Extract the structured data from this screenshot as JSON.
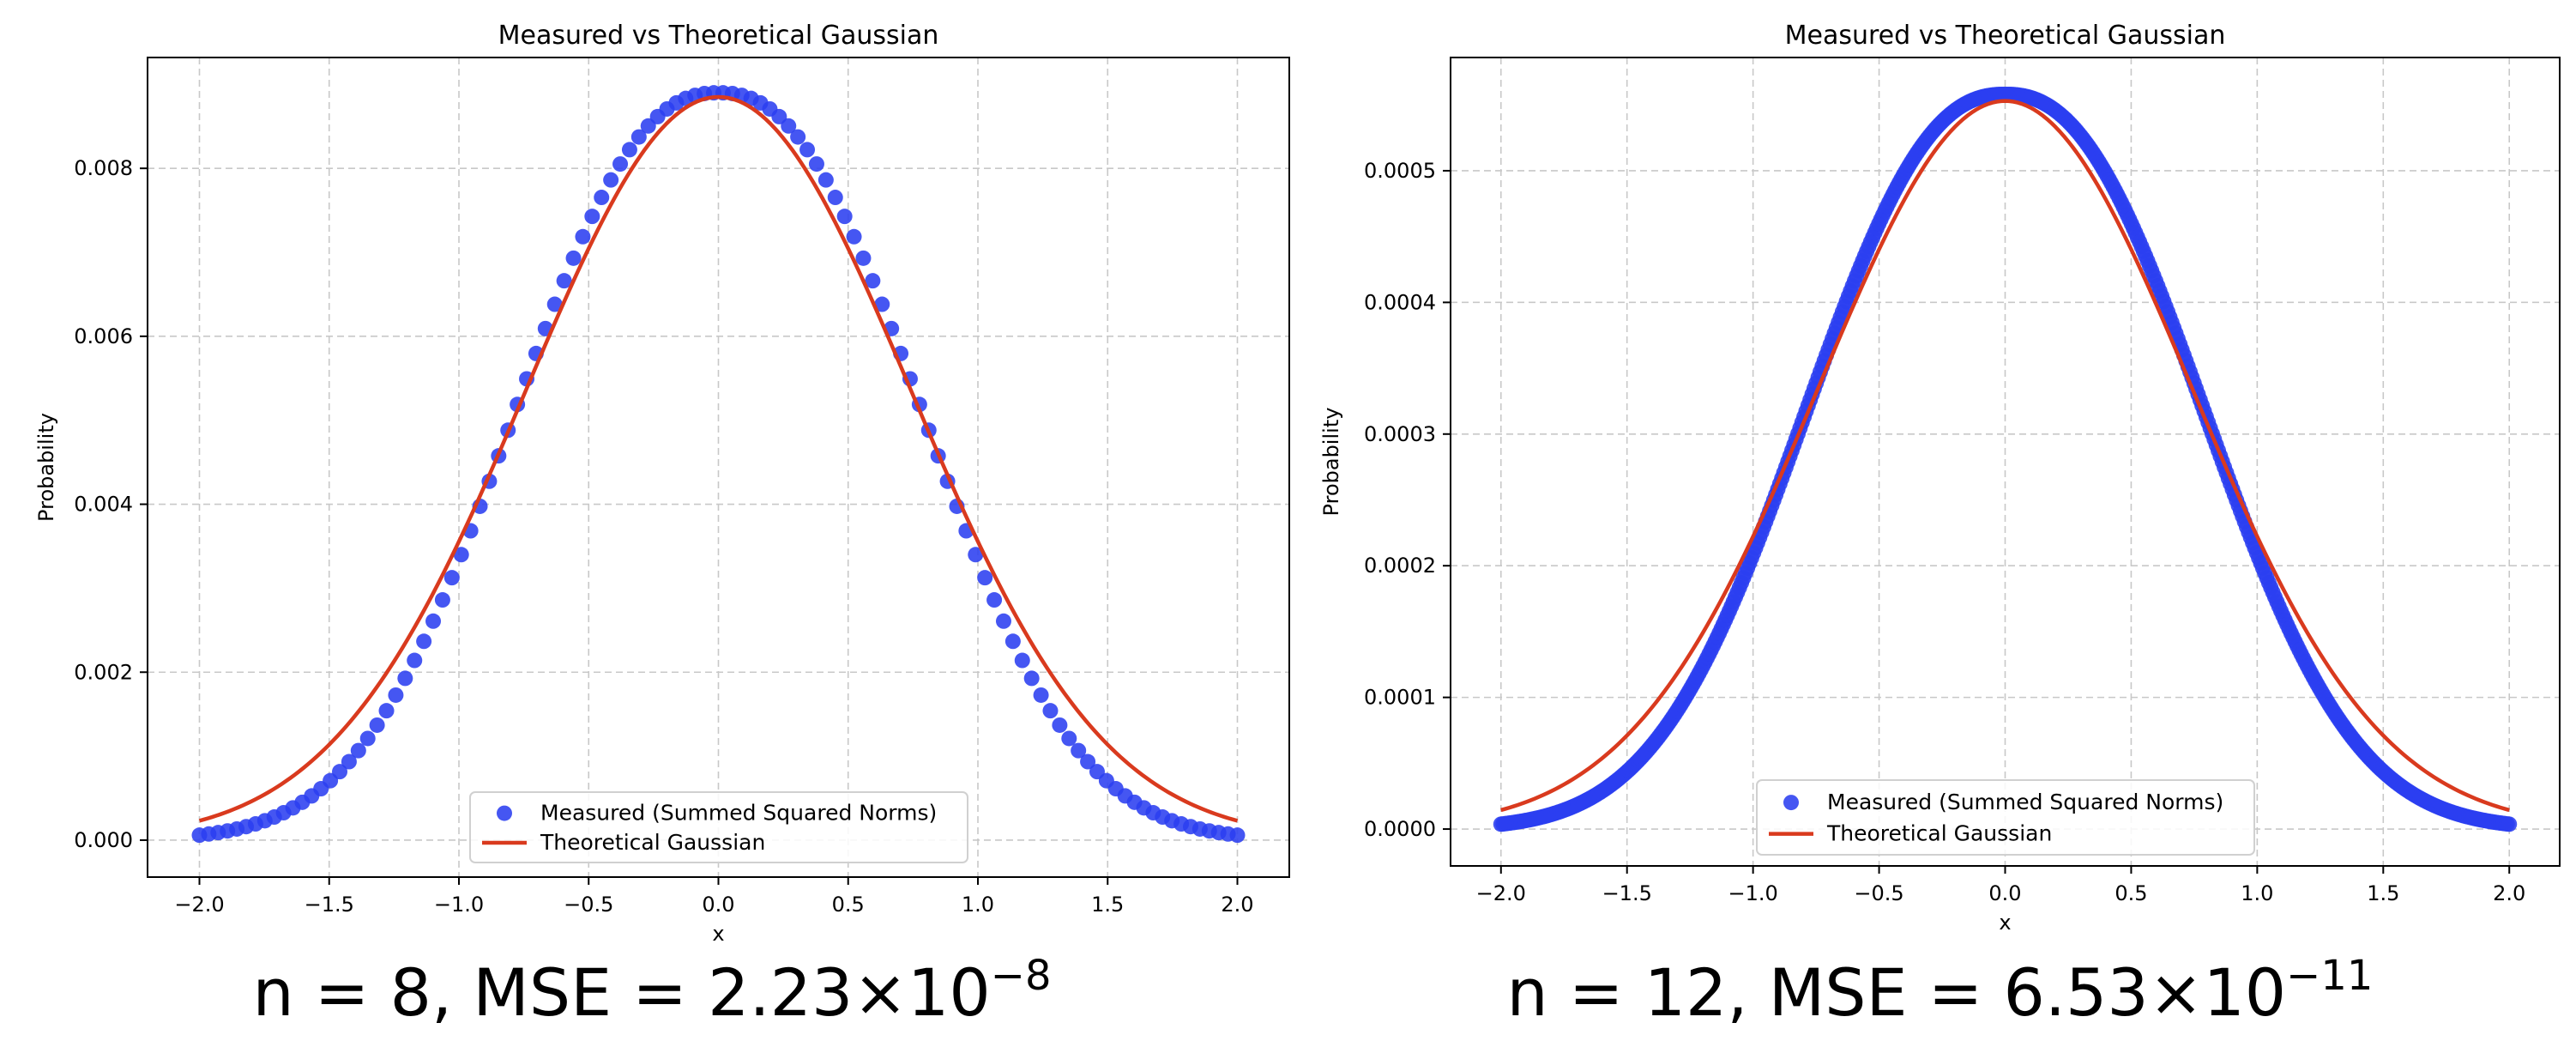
{
  "chart_data": [
    {
      "type": "scatter",
      "title": "Measured vs Theoretical Gaussian",
      "xlabel": "x",
      "ylabel": "Probability",
      "xlim": [
        -2.2,
        2.2
      ],
      "ylim": [
        -0.00044,
        0.00932
      ],
      "xticks": [
        -2.0,
        -1.5,
        -1.0,
        -0.5,
        0.0,
        0.5,
        1.0,
        1.5,
        2.0
      ],
      "xtick_labels": [
        "−2.0",
        "−1.5",
        "−1.0",
        "−0.5",
        "0.0",
        "0.5",
        "1.0",
        "1.5",
        "2.0"
      ],
      "yticks": [
        0.0,
        0.002,
        0.004,
        0.006,
        0.008
      ],
      "ytick_labels": [
        "0.000",
        "0.002",
        "0.004",
        "0.006",
        "0.008"
      ],
      "grid": true,
      "legend_position": "bottom-center",
      "series": [
        {
          "name": "Measured (Summed Squared Norms)",
          "kind": "scatter",
          "color": "#2b3ff0",
          "x_start": -2.0,
          "x_end": 2.0,
          "num_points": 112,
          "peak": 0.0089,
          "sigma": 0.75,
          "shape_exponent": 2.35
        },
        {
          "name": "Theoretical Gaussian",
          "kind": "line",
          "color": "#d93a1e",
          "x_start": -2.0,
          "x_end": 2.0,
          "peak": 0.00885,
          "sigma": 0.7405,
          "shape_exponent": 2.0
        }
      ],
      "caption": {
        "text": "n = 8, MSE = 2.23×10",
        "exponent": "−8"
      }
    },
    {
      "type": "scatter",
      "title": "Measured vs Theoretical Gaussian",
      "xlabel": "x",
      "ylabel": "Probability",
      "xlim": [
        -2.2,
        2.2
      ],
      "ylim": [
        -2.8e-05,
        0.000586
      ],
      "xticks": [
        -2.0,
        -1.5,
        -1.0,
        -0.5,
        0.0,
        0.5,
        1.0,
        1.5,
        2.0
      ],
      "xtick_labels": [
        "−2.0",
        "−1.5",
        "−1.0",
        "−0.5",
        "0.0",
        "0.5",
        "1.0",
        "1.5",
        "2.0"
      ],
      "yticks": [
        0.0,
        0.0001,
        0.0002,
        0.0003,
        0.0004,
        0.0005
      ],
      "ytick_labels": [
        "0.0000",
        "0.0001",
        "0.0002",
        "0.0003",
        "0.0004",
        "0.0005"
      ],
      "grid": true,
      "legend_position": "bottom-center",
      "series": [
        {
          "name": "Measured (Summed Squared Norms)",
          "kind": "scatter",
          "color": "#2b3ff0",
          "x_start": -2.0,
          "x_end": 2.0,
          "num_points": 500,
          "peak": 0.000558,
          "sigma": 0.75,
          "shape_exponent": 2.35
        },
        {
          "name": "Theoretical Gaussian",
          "kind": "line",
          "color": "#d93a1e",
          "x_start": -2.0,
          "x_end": 2.0,
          "peak": 0.000553,
          "sigma": 0.7405,
          "shape_exponent": 2.0
        }
      ],
      "caption": {
        "text": "n = 12, MSE = 6.53×10",
        "exponent": "−11"
      }
    }
  ]
}
